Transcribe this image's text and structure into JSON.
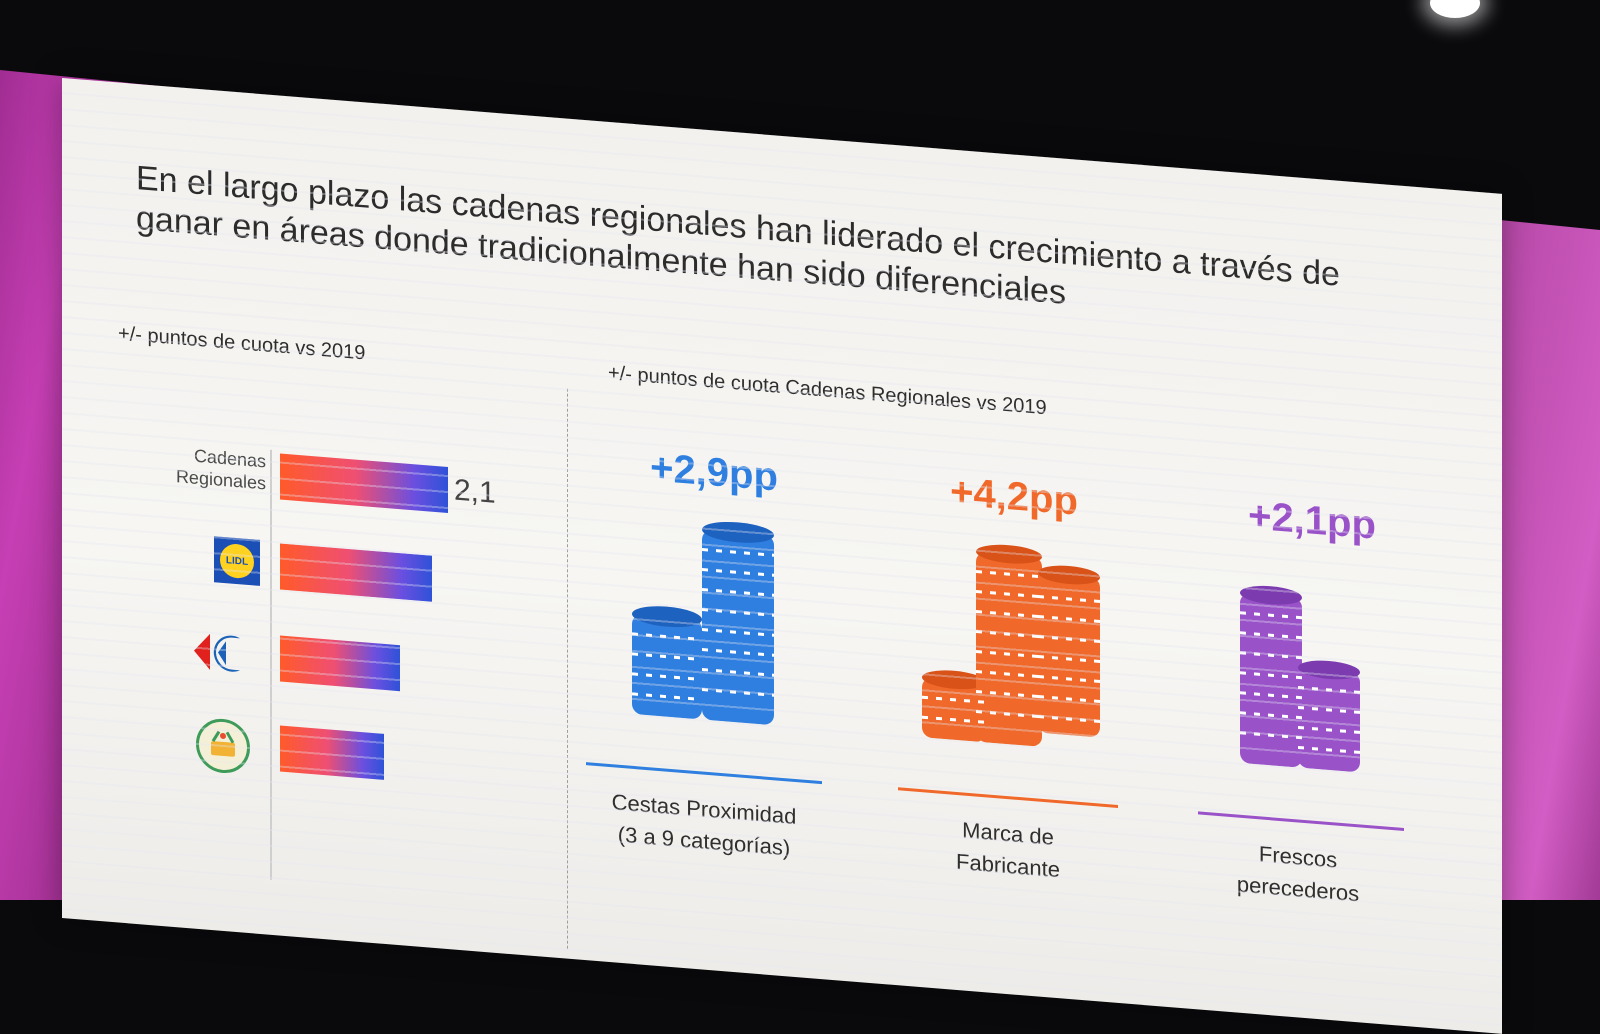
{
  "slide": {
    "title": "En el largo plazo las cadenas regionales han liderado el crecimiento a través de ganar en áreas donde tradicionalmente han sido diferenciales",
    "left_panel_label": "+/- puntos de cuota vs 2019",
    "right_panel_label": "+/- puntos de cuota Cadenas Regionales vs 2019"
  },
  "left_chart": {
    "bars": [
      {
        "label": "Cadenas Regionales",
        "value": 2.1,
        "value_label": "2,1"
      },
      {
        "logo": "Lidl",
        "value": 1.9
      },
      {
        "logo": "Carrefour",
        "value": 1.5
      },
      {
        "logo": "basket",
        "value": 1.3
      }
    ]
  },
  "categories": [
    {
      "value": "+2,9pp",
      "label_line1": "Cestas Proximidad",
      "label_line2": "(3 a 9 categorías)",
      "color": "#2f7fe0"
    },
    {
      "value": "+4,2pp",
      "label_line1": "Marca de",
      "label_line2": "Fabricante",
      "color": "#f0692a"
    },
    {
      "value": "+2,1pp",
      "label_line1": "Frescos",
      "label_line2": "perecederos",
      "color": "#9a52c9"
    }
  ],
  "colors": {
    "wall_magenta": "#c63fb4",
    "bar_start": "#ff5a2a",
    "bar_end": "#2e52d8"
  },
  "logos": {
    "lidl": "LIDL"
  }
}
